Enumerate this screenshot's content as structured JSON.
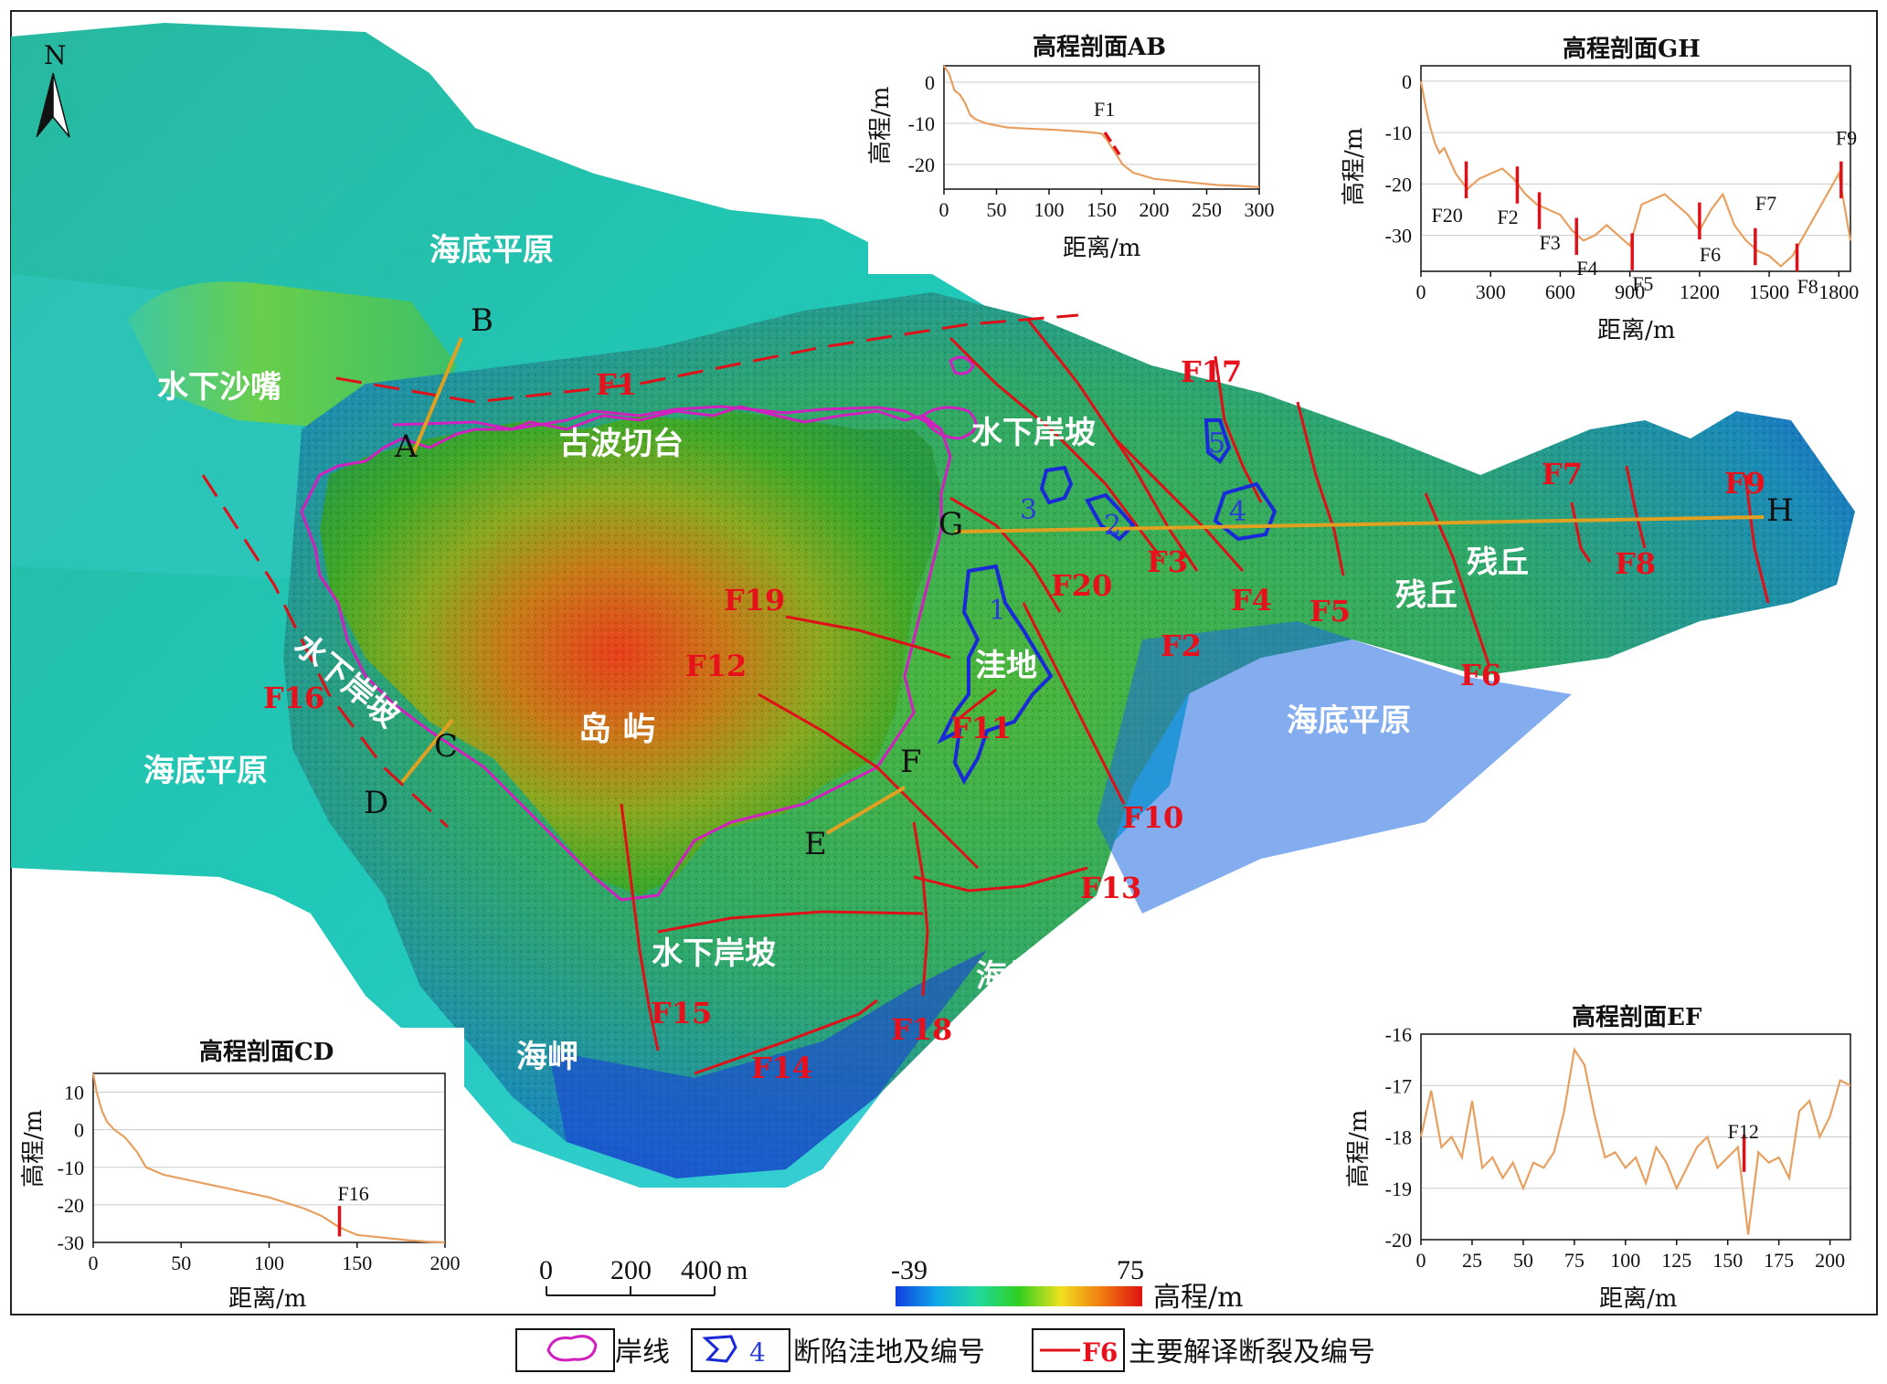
{
  "north": "N",
  "regions": {
    "plain_n": "海底平原",
    "spit": "水下沙嘴",
    "terrace": "古波切台",
    "slope_ne": "水下岸坡",
    "slope_w": "水下岸坡",
    "slope_s": "水下岸坡",
    "island": "岛  屿",
    "depression": "洼地",
    "plain_w": "海底平原",
    "plain_e": "海底平原",
    "residual_1": "残丘",
    "residual_2": "残丘",
    "cape_s": "海岬",
    "cape_sw": "海岬"
  },
  "section_points": {
    "A": "A",
    "B": "B",
    "C": "C",
    "D": "D",
    "E": "E",
    "F": "F",
    "G": "G",
    "H": "H"
  },
  "faults": {
    "F1": "F1",
    "F2": "F2",
    "F3": "F3",
    "F4": "F4",
    "F5": "F5",
    "F6": "F6",
    "F7": "F7",
    "F8": "F8",
    "F9": "F9",
    "F10": "F10",
    "F11": "F11",
    "F12": "F12",
    "F13": "F13",
    "F14": "F14",
    "F15": "F15",
    "F16": "F16",
    "F17": "F17",
    "F18": "F18",
    "F19": "F19",
    "F20": "F20"
  },
  "depressions": [
    "1",
    "2",
    "3",
    "4",
    "5"
  ],
  "scale_bar": {
    "ticks": [
      "0",
      "200",
      "400"
    ],
    "unit": "m"
  },
  "elevation_legend": {
    "min": "-39",
    "max": "75",
    "label": "高程/m",
    "colors": [
      "#1040e0",
      "#10a8e8",
      "#20d8a0",
      "#30d020",
      "#f0e020",
      "#f08010",
      "#e01010"
    ]
  },
  "legend": {
    "coastline": "岸线",
    "depression_number": "4",
    "depression": "断陷洼地及编号",
    "fault_number": "F6",
    "fault": "主要解译断裂及编号"
  },
  "colors": {
    "fault": "#e01018",
    "coastline": "#d020c0",
    "depression": "#1a2ad8",
    "profile_line": "#e8a060",
    "section_line": "#e0a020"
  },
  "insets": {
    "ab": {
      "title": "高程剖面AB",
      "xlabel": "距离/m",
      "ylabel": "高程/m",
      "xticks": [
        "0",
        "50",
        "100",
        "150",
        "200",
        "250",
        "300"
      ],
      "yticks": [
        "0",
        "-10",
        "-20"
      ],
      "fault_label": "F1"
    },
    "gh": {
      "title": "高程剖面GH",
      "xlabel": "距离/m",
      "ylabel": "高程/m",
      "xticks": [
        "0",
        "300",
        "600",
        "900",
        "1200",
        "1500",
        "1800"
      ],
      "yticks": [
        "0",
        "-10",
        "-20",
        "-30"
      ],
      "fault_labels": [
        "F20",
        "F2",
        "F3",
        "F4",
        "F5",
        "F6",
        "F7",
        "F8",
        "F9"
      ]
    },
    "cd": {
      "title": "高程剖面CD",
      "xlabel": "距离/m",
      "ylabel": "高程/m",
      "xticks": [
        "0",
        "50",
        "100",
        "150",
        "200"
      ],
      "yticks": [
        "10",
        "0",
        "-10",
        "-20",
        "-30"
      ],
      "fault_label": "F16"
    },
    "ef": {
      "title": "高程剖面EF",
      "xlabel": "距离/m",
      "ylabel": "高程/m",
      "xticks": [
        "0",
        "25",
        "50",
        "75",
        "100",
        "125",
        "150",
        "175",
        "200"
      ],
      "yticks": [
        "-16",
        "-17",
        "-18",
        "-19",
        "-20"
      ],
      "fault_label": "F12"
    }
  },
  "chart_data": [
    {
      "type": "line",
      "title": "高程剖面AB",
      "xlabel": "距离/m",
      "ylabel": "高程/m",
      "xlim": [
        0,
        300
      ],
      "ylim": [
        -26,
        4
      ],
      "x": [
        0,
        5,
        10,
        15,
        20,
        25,
        30,
        40,
        50,
        60,
        80,
        100,
        120,
        140,
        150,
        155,
        160,
        165,
        170,
        180,
        200,
        220,
        240,
        260,
        280,
        300
      ],
      "y": [
        4,
        2,
        -2,
        -3,
        -5,
        -8,
        -9,
        -10,
        -10.5,
        -11,
        -11.3,
        -11.5,
        -11.8,
        -12.2,
        -12.5,
        -14,
        -16,
        -18,
        -20,
        -22,
        -23.5,
        -24,
        -24.5,
        -25,
        -25.2,
        -25.5
      ],
      "faults": [
        {
          "name": "F1",
          "x": 160
        }
      ]
    },
    {
      "type": "line",
      "title": "高程剖面GH",
      "xlabel": "距离/m",
      "ylabel": "高程/m",
      "xlim": [
        0,
        1850
      ],
      "ylim": [
        -37,
        3
      ],
      "x": [
        0,
        20,
        40,
        60,
        80,
        100,
        150,
        200,
        250,
        300,
        350,
        400,
        450,
        500,
        550,
        600,
        650,
        700,
        750,
        800,
        850,
        900,
        950,
        1000,
        1050,
        1100,
        1150,
        1200,
        1250,
        1300,
        1350,
        1400,
        1450,
        1500,
        1550,
        1600,
        1650,
        1700,
        1750,
        1800,
        1850
      ],
      "y": [
        0,
        -5,
        -9,
        -12,
        -14,
        -13,
        -18,
        -21,
        -19,
        -18,
        -17,
        -19,
        -22,
        -24,
        -25,
        -26,
        -29,
        -31,
        -30,
        -28,
        -30,
        -32,
        -24,
        -23,
        -22,
        -24,
        -26,
        -29,
        -25,
        -22,
        -28,
        -31,
        -33,
        -34,
        -36,
        -34,
        -30,
        -26,
        -22,
        -18,
        -31
      ],
      "faults": [
        {
          "name": "F20",
          "x": 195
        },
        {
          "name": "F2",
          "x": 415
        },
        {
          "name": "F3",
          "x": 510
        },
        {
          "name": "F4",
          "x": 670
        },
        {
          "name": "F5",
          "x": 910
        },
        {
          "name": "F6",
          "x": 1200
        },
        {
          "name": "F7",
          "x": 1440
        },
        {
          "name": "F8",
          "x": 1620
        },
        {
          "name": "F9",
          "x": 1810
        }
      ]
    },
    {
      "type": "line",
      "title": "高程剖面CD",
      "xlabel": "距离/m",
      "ylabel": "高程/m",
      "xlim": [
        0,
        200
      ],
      "ylim": [
        -30,
        15
      ],
      "x": [
        0,
        2,
        5,
        8,
        12,
        18,
        25,
        30,
        40,
        50,
        60,
        70,
        80,
        90,
        100,
        110,
        120,
        130,
        140,
        150,
        160,
        170,
        180,
        190,
        200
      ],
      "y": [
        15,
        10,
        5,
        2,
        0,
        -2,
        -6,
        -10,
        -12,
        -13,
        -14,
        -15,
        -16,
        -17,
        -18,
        -19.5,
        -21,
        -23,
        -26,
        -28,
        -28.5,
        -29,
        -29.5,
        -29.8,
        -30
      ],
      "faults": [
        {
          "name": "F16",
          "x": 140
        }
      ]
    },
    {
      "type": "line",
      "title": "高程剖面EF",
      "xlabel": "距离/m",
      "ylabel": "高程/m",
      "xlim": [
        0,
        210
      ],
      "ylim": [
        -20,
        -16
      ],
      "x": [
        0,
        5,
        10,
        15,
        20,
        25,
        30,
        35,
        40,
        45,
        50,
        55,
        60,
        65,
        70,
        75,
        80,
        85,
        90,
        95,
        100,
        105,
        110,
        115,
        120,
        125,
        130,
        135,
        140,
        145,
        150,
        155,
        160,
        165,
        170,
        175,
        180,
        185,
        190,
        195,
        200,
        205,
        210
      ],
      "y": [
        -18,
        -17.1,
        -18.2,
        -18,
        -18.4,
        -17.3,
        -18.6,
        -18.4,
        -18.8,
        -18.5,
        -19,
        -18.5,
        -18.6,
        -18.3,
        -17.5,
        -16.3,
        -16.6,
        -17.6,
        -18.4,
        -18.3,
        -18.6,
        -18.4,
        -18.9,
        -18.2,
        -18.5,
        -19,
        -18.6,
        -18.2,
        -18,
        -18.6,
        -18.4,
        -18.2,
        -19.9,
        -18.3,
        -18.5,
        -18.4,
        -18.8,
        -17.5,
        -17.3,
        -18,
        -17.6,
        -16.9,
        -17
      ],
      "faults": [
        {
          "name": "F12",
          "x": 158
        }
      ]
    }
  ]
}
